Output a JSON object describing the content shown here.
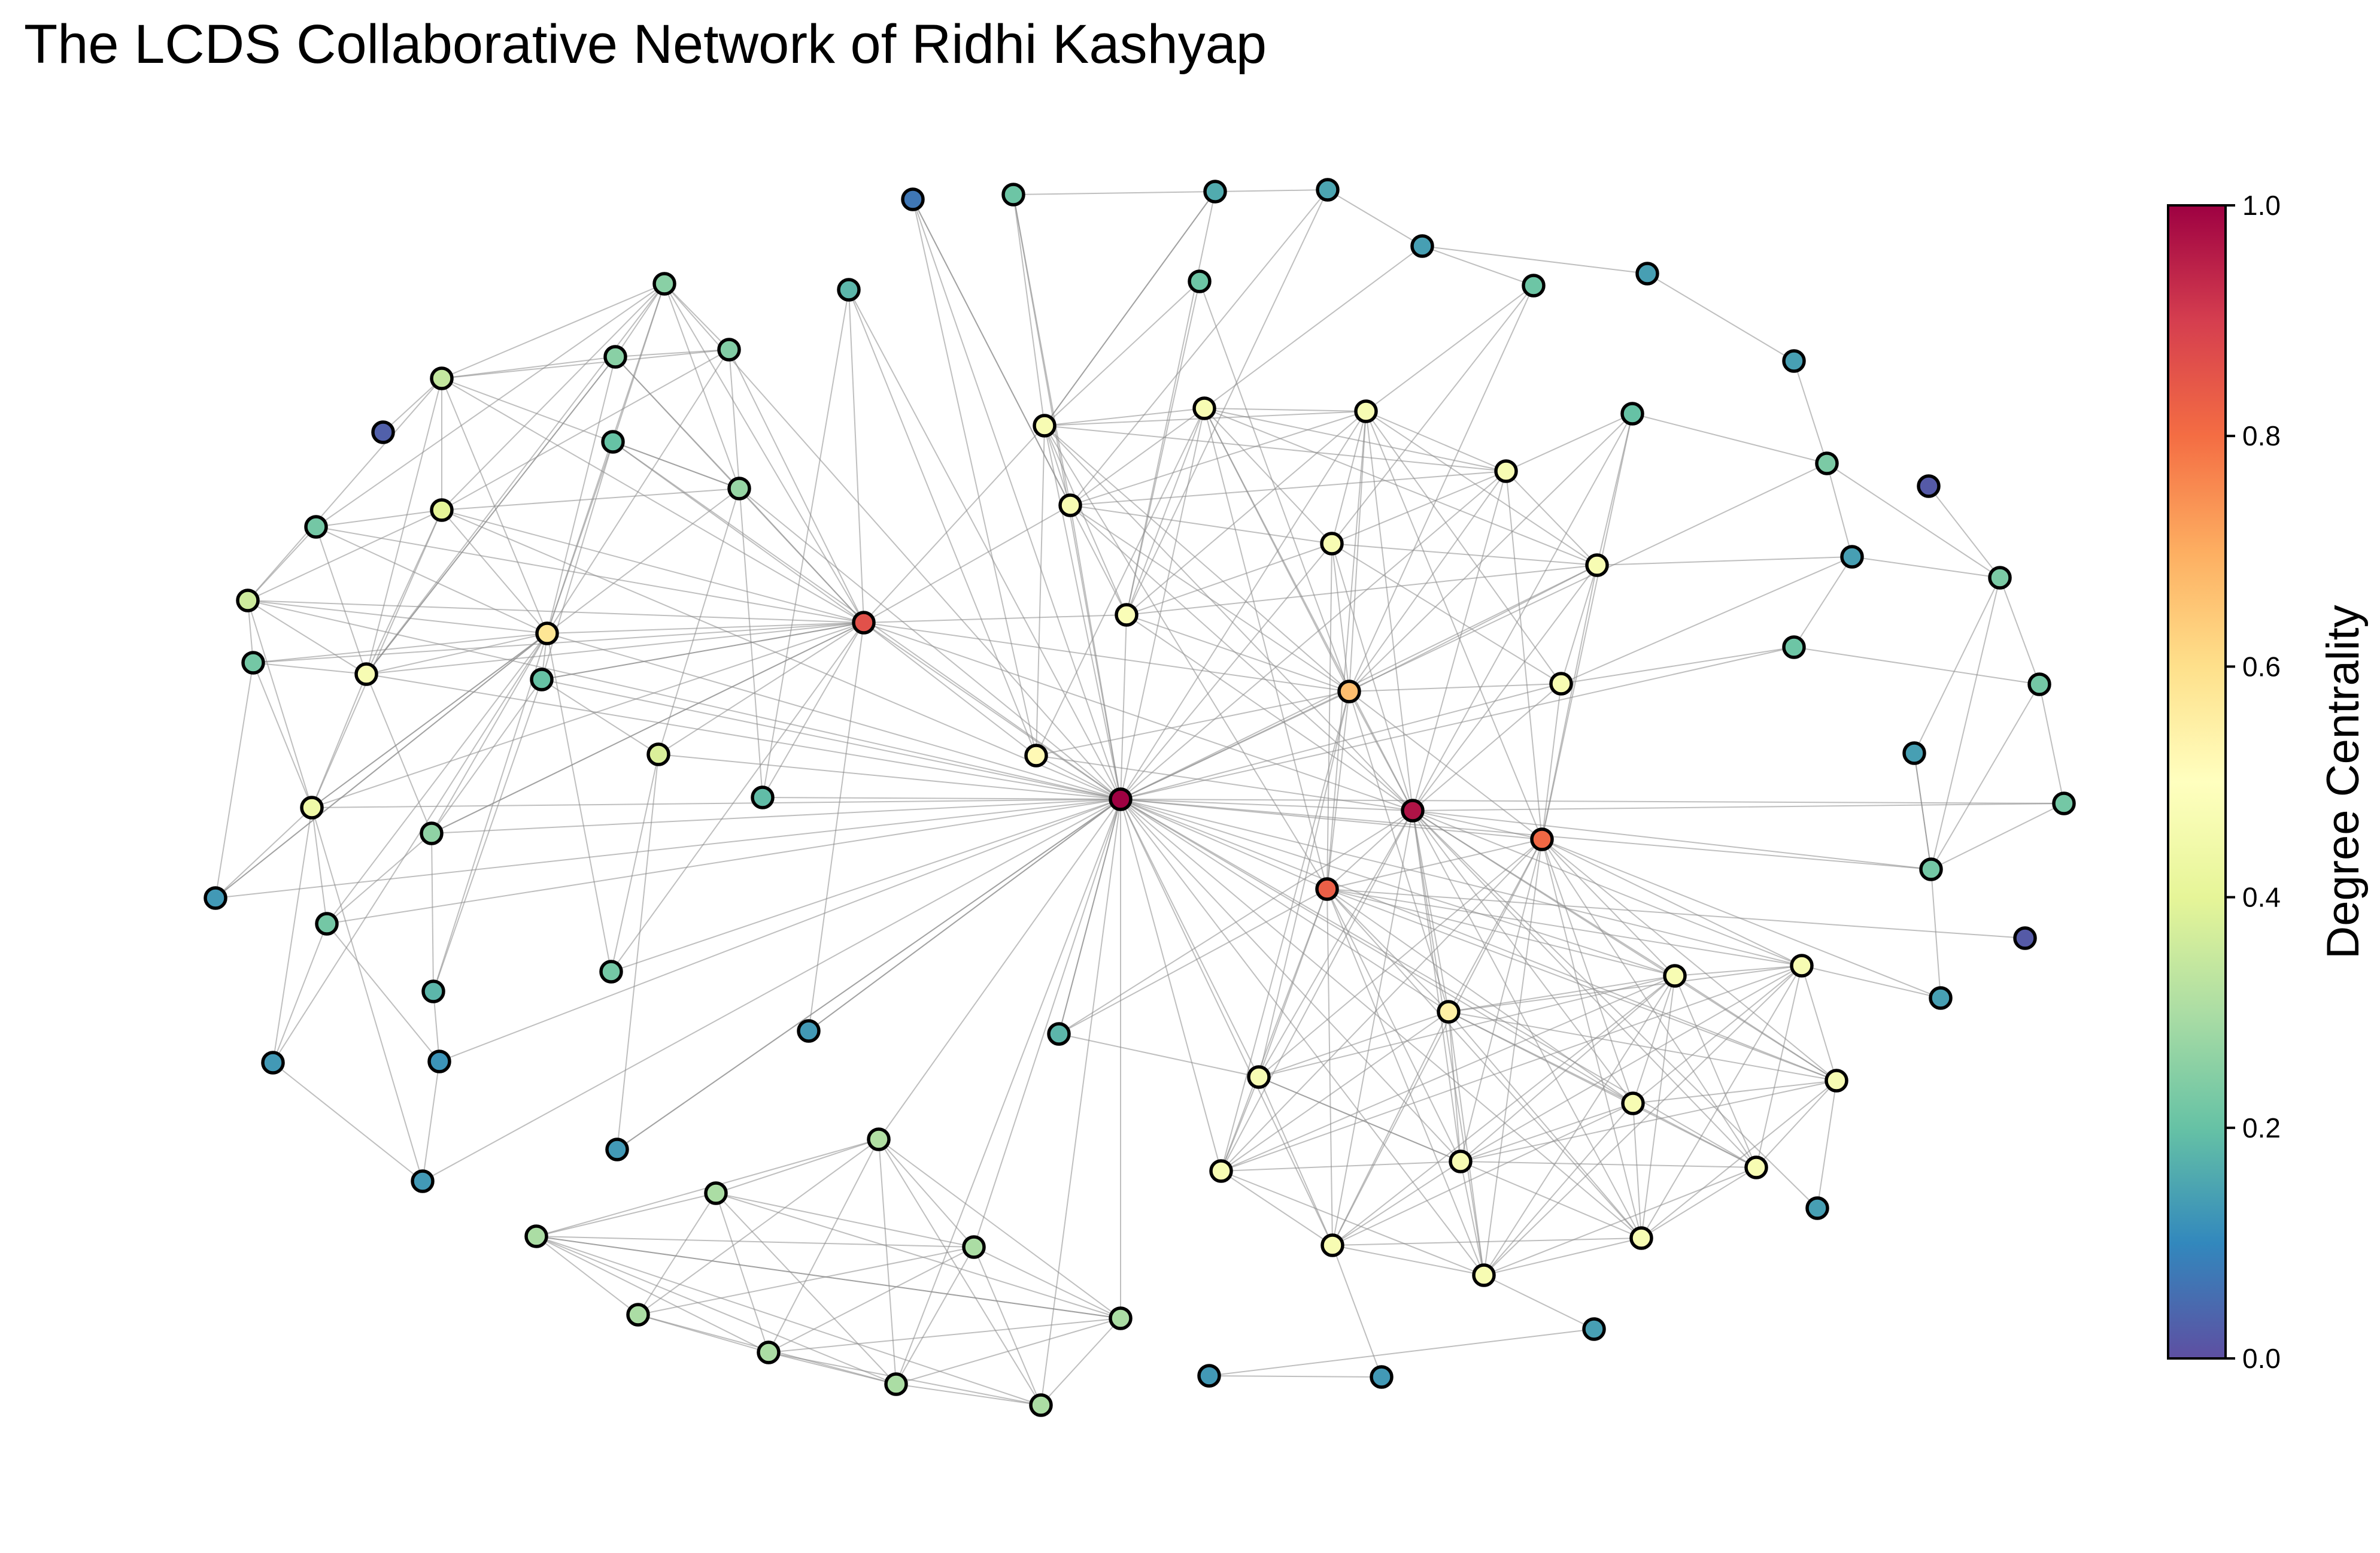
{
  "title": "The LCDS Collaborative Network of Ridhi Kashyap",
  "colorbar": {
    "label": "Degree Centrality",
    "ticks": [
      "0.0",
      "0.2",
      "0.4",
      "0.6",
      "0.8",
      "1.0"
    ],
    "range": [
      0,
      1
    ],
    "colormap": "Spectral_r",
    "colors": [
      "#5e4fa2",
      "#3288bd",
      "#66c2a5",
      "#abdda4",
      "#e6f598",
      "#ffffbf",
      "#fee08b",
      "#fdae61",
      "#f46d43",
      "#d53e4f",
      "#9e0142"
    ]
  },
  "node_border_color": "#000000",
  "edge_color": "#8a8a8a"
}
